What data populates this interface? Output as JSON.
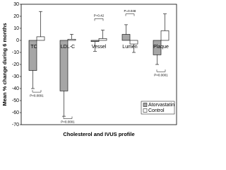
{
  "chart_data": {
    "type": "bar",
    "y_label": "Mean % change during 6 months",
    "x_label": "Cholesterol and IVUS profile",
    "categories": [
      "TC",
      "LDL-C",
      "Vessel",
      "Lumen",
      "Plaque"
    ],
    "series": [
      {
        "name": "Atorvastatin",
        "color": "#a6a6a6",
        "values": [
          -25,
          -42,
          -1,
          5,
          -12
        ],
        "errors": [
          15,
          21,
          8,
          8,
          8
        ]
      },
      {
        "name": "Control",
        "color": "#ffffff",
        "values": [
          3,
          1,
          1.5,
          -3,
          8
        ],
        "errors": [
          21,
          4,
          7,
          7,
          14
        ]
      }
    ],
    "annotations": [
      "P<0.0001",
      "P<0.0001",
      "P=0.42",
      "P=0.048",
      "P<0.0001"
    ],
    "ylim": [
      -70,
      30
    ],
    "yticks": [
      30,
      20,
      10,
      0,
      -10,
      -20,
      -30,
      -40,
      -50,
      -60,
      -70
    ],
    "legend": "lower right"
  }
}
